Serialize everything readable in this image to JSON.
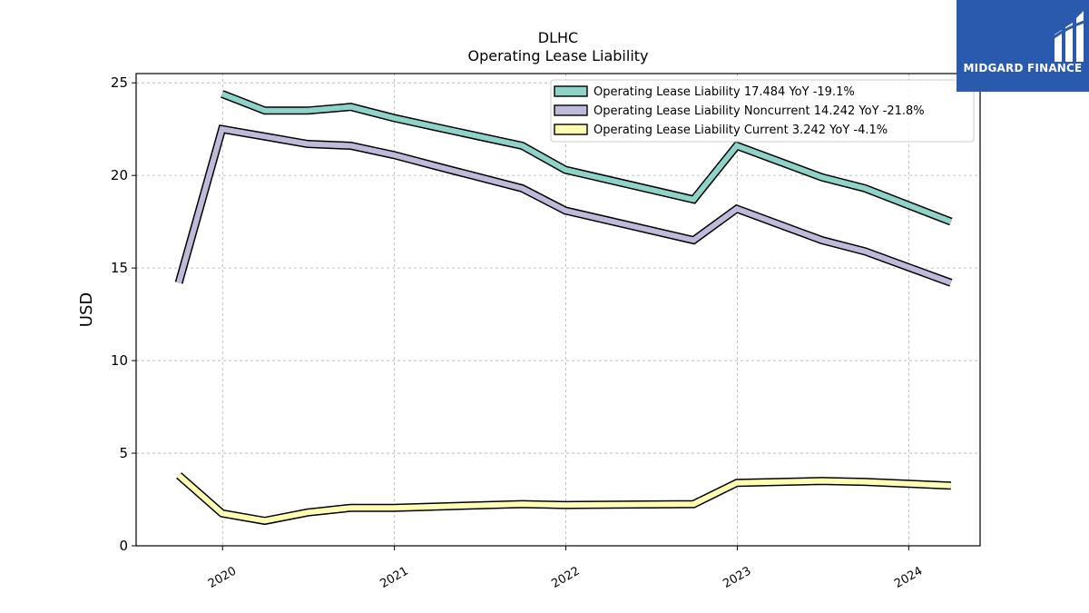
{
  "header": {
    "title": "DLHC",
    "subtitle": "Operating Lease Liability"
  },
  "logo": {
    "text": "MIDGARD FINANCE",
    "background": "#2a5aad"
  },
  "chart_data": {
    "type": "line",
    "ylabel": "USD",
    "xlabel": "",
    "ylim": [
      0,
      25.5
    ],
    "yticks": [
      0,
      5,
      10,
      15,
      20,
      25
    ],
    "xticks": [
      {
        "label": "2020",
        "date": "2020-01-01"
      },
      {
        "label": "2021",
        "date": "2021-01-01"
      },
      {
        "label": "2022",
        "date": "2022-01-01"
      },
      {
        "label": "2023",
        "date": "2023-01-01"
      },
      {
        "label": "2024",
        "date": "2024-01-01"
      }
    ],
    "xlim": [
      "2019-07-01",
      "2024-06-01"
    ],
    "grid": true,
    "legend_position": "top-right",
    "series": [
      {
        "name": "Operating Lease Liability",
        "legend_label": "Operating Lease Liability  17.484 YoY -19.1%",
        "color": "#8dd3c7",
        "points": [
          [
            "2019-12-31",
            24.4
          ],
          [
            "2020-03-31",
            23.5
          ],
          [
            "2020-06-30",
            23.5
          ],
          [
            "2020-09-30",
            23.7
          ],
          [
            "2020-12-31",
            23.1
          ],
          [
            "2021-03-31",
            22.6
          ],
          [
            "2021-09-30",
            21.6
          ],
          [
            "2021-12-31",
            20.3
          ],
          [
            "2022-09-30",
            18.7
          ],
          [
            "2022-12-31",
            21.6
          ],
          [
            "2023-06-30",
            19.9
          ],
          [
            "2023-09-30",
            19.3
          ],
          [
            "2024-03-31",
            17.5
          ]
        ]
      },
      {
        "name": "Operating Lease Liability Noncurrent",
        "legend_label": "Operating Lease Liability Noncurrent  14.242 YoY -21.8%",
        "color": "#bebada",
        "points": [
          [
            "2019-09-30",
            14.2
          ],
          [
            "2019-12-31",
            22.5
          ],
          [
            "2020-03-31",
            22.1
          ],
          [
            "2020-06-30",
            21.7
          ],
          [
            "2020-09-30",
            21.6
          ],
          [
            "2020-12-31",
            21.1
          ],
          [
            "2021-03-31",
            20.5
          ],
          [
            "2021-09-30",
            19.3
          ],
          [
            "2021-12-31",
            18.1
          ],
          [
            "2022-09-30",
            16.5
          ],
          [
            "2022-12-31",
            18.2
          ],
          [
            "2023-06-30",
            16.5
          ],
          [
            "2023-09-30",
            15.9
          ],
          [
            "2024-03-31",
            14.2
          ]
        ]
      },
      {
        "name": "Operating Lease Liability Current",
        "legend_label": "Operating Lease Liability Current  3.242 YoY -4.1%",
        "color": "#ffffb3",
        "points": [
          [
            "2019-09-30",
            3.8
          ],
          [
            "2019-12-31",
            1.75
          ],
          [
            "2020-03-31",
            1.35
          ],
          [
            "2020-06-30",
            1.8
          ],
          [
            "2020-09-30",
            2.05
          ],
          [
            "2020-12-31",
            2.05
          ],
          [
            "2021-09-30",
            2.25
          ],
          [
            "2021-12-31",
            2.2
          ],
          [
            "2022-09-30",
            2.25
          ],
          [
            "2022-12-31",
            3.4
          ],
          [
            "2023-06-30",
            3.5
          ],
          [
            "2023-09-30",
            3.45
          ],
          [
            "2024-03-31",
            3.25
          ]
        ]
      }
    ]
  }
}
